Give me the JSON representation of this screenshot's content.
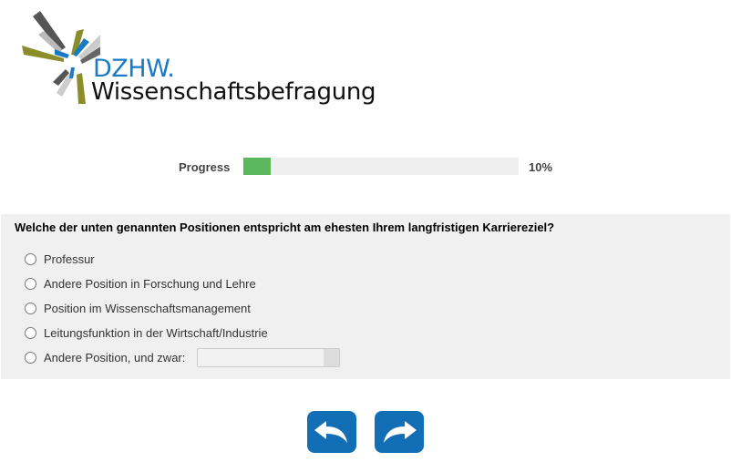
{
  "logo": {
    "brand": "DZHW.",
    "subtitle": "Wissenschaftsbefragung"
  },
  "progress": {
    "label": "Progress",
    "value": 10,
    "text": "10%",
    "fill_color": "#5cb85c"
  },
  "question": {
    "text": "Welche der unten genannten Positionen entspricht am ehesten Ihrem langfristigen Karriereziel?",
    "options": [
      {
        "label": "Professur"
      },
      {
        "label": "Andere Position in Forschung und Lehre"
      },
      {
        "label": "Position im Wissenschaftsmanagement"
      },
      {
        "label": "Leitungsfunktion in der Wirtschaft/Industrie"
      },
      {
        "label": "Andere Position, und zwar:"
      }
    ],
    "other_value": ""
  },
  "nav": {
    "back_icon": "undo-arrow-icon",
    "next_icon": "redo-arrow-icon",
    "color": "#136fb5"
  }
}
